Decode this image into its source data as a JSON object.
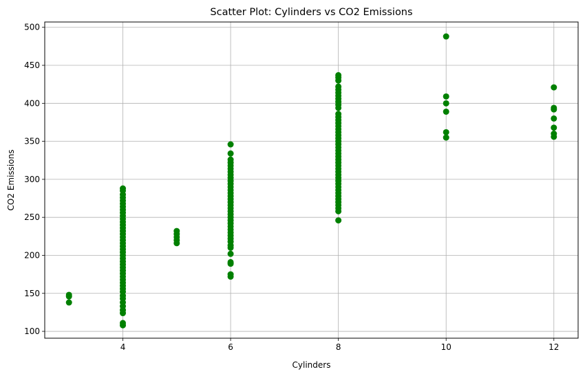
{
  "chart_data": {
    "type": "scatter",
    "title": "Scatter Plot: Cylinders vs CO2 Emissions",
    "xlabel": "Cylinders",
    "ylabel": "CO2 Emissions",
    "xlim": [
      2.55,
      12.45
    ],
    "ylim": [
      91,
      507
    ],
    "xticks": [
      4,
      6,
      8,
      10,
      12
    ],
    "yticks": [
      100,
      150,
      200,
      250,
      300,
      350,
      400,
      450,
      500
    ],
    "grid": true,
    "marker_color": "#008000",
    "series": [
      {
        "points": [
          {
            "x": 3,
            "y": 138
          },
          {
            "x": 3,
            "y": 146
          },
          {
            "x": 3,
            "y": 148
          },
          {
            "x": 4,
            "y": 108
          },
          {
            "x": 4,
            "y": 111
          },
          {
            "x": 4,
            "y": 124
          },
          {
            "x": 4,
            "y": 128
          },
          {
            "x": 4,
            "y": 133
          },
          {
            "x": 4,
            "y": 138
          },
          {
            "x": 4,
            "y": 143
          },
          {
            "x": 4,
            "y": 147
          },
          {
            "x": 4,
            "y": 152
          },
          {
            "x": 4,
            "y": 156
          },
          {
            "x": 4,
            "y": 160
          },
          {
            "x": 4,
            "y": 164
          },
          {
            "x": 4,
            "y": 168
          },
          {
            "x": 4,
            "y": 172
          },
          {
            "x": 4,
            "y": 176
          },
          {
            "x": 4,
            "y": 180
          },
          {
            "x": 4,
            "y": 184
          },
          {
            "x": 4,
            "y": 188
          },
          {
            "x": 4,
            "y": 192
          },
          {
            "x": 4,
            "y": 196
          },
          {
            "x": 4,
            "y": 200
          },
          {
            "x": 4,
            "y": 204
          },
          {
            "x": 4,
            "y": 208
          },
          {
            "x": 4,
            "y": 212
          },
          {
            "x": 4,
            "y": 216
          },
          {
            "x": 4,
            "y": 220
          },
          {
            "x": 4,
            "y": 224
          },
          {
            "x": 4,
            "y": 228
          },
          {
            "x": 4,
            "y": 232
          },
          {
            "x": 4,
            "y": 236
          },
          {
            "x": 4,
            "y": 240
          },
          {
            "x": 4,
            "y": 244
          },
          {
            "x": 4,
            "y": 248
          },
          {
            "x": 4,
            "y": 252
          },
          {
            "x": 4,
            "y": 256
          },
          {
            "x": 4,
            "y": 260
          },
          {
            "x": 4,
            "y": 264
          },
          {
            "x": 4,
            "y": 268
          },
          {
            "x": 4,
            "y": 272
          },
          {
            "x": 4,
            "y": 276
          },
          {
            "x": 4,
            "y": 280
          },
          {
            "x": 4,
            "y": 285
          },
          {
            "x": 4,
            "y": 288
          },
          {
            "x": 5,
            "y": 216
          },
          {
            "x": 5,
            "y": 220
          },
          {
            "x": 5,
            "y": 224
          },
          {
            "x": 5,
            "y": 228
          },
          {
            "x": 5,
            "y": 232
          },
          {
            "x": 6,
            "y": 172
          },
          {
            "x": 6,
            "y": 175
          },
          {
            "x": 6,
            "y": 189
          },
          {
            "x": 6,
            "y": 191
          },
          {
            "x": 6,
            "y": 202
          },
          {
            "x": 6,
            "y": 210
          },
          {
            "x": 6,
            "y": 213
          },
          {
            "x": 6,
            "y": 218
          },
          {
            "x": 6,
            "y": 222
          },
          {
            "x": 6,
            "y": 226
          },
          {
            "x": 6,
            "y": 230
          },
          {
            "x": 6,
            "y": 234
          },
          {
            "x": 6,
            "y": 238
          },
          {
            "x": 6,
            "y": 242
          },
          {
            "x": 6,
            "y": 246
          },
          {
            "x": 6,
            "y": 250
          },
          {
            "x": 6,
            "y": 254
          },
          {
            "x": 6,
            "y": 258
          },
          {
            "x": 6,
            "y": 262
          },
          {
            "x": 6,
            "y": 266
          },
          {
            "x": 6,
            "y": 270
          },
          {
            "x": 6,
            "y": 274
          },
          {
            "x": 6,
            "y": 278
          },
          {
            "x": 6,
            "y": 282
          },
          {
            "x": 6,
            "y": 286
          },
          {
            "x": 6,
            "y": 290
          },
          {
            "x": 6,
            "y": 294
          },
          {
            "x": 6,
            "y": 298
          },
          {
            "x": 6,
            "y": 302
          },
          {
            "x": 6,
            "y": 306
          },
          {
            "x": 6,
            "y": 310
          },
          {
            "x": 6,
            "y": 314
          },
          {
            "x": 6,
            "y": 318
          },
          {
            "x": 6,
            "y": 322
          },
          {
            "x": 6,
            "y": 326
          },
          {
            "x": 6,
            "y": 334
          },
          {
            "x": 6,
            "y": 346
          },
          {
            "x": 8,
            "y": 246
          },
          {
            "x": 8,
            "y": 258
          },
          {
            "x": 8,
            "y": 262
          },
          {
            "x": 8,
            "y": 266
          },
          {
            "x": 8,
            "y": 270
          },
          {
            "x": 8,
            "y": 274
          },
          {
            "x": 8,
            "y": 278
          },
          {
            "x": 8,
            "y": 282
          },
          {
            "x": 8,
            "y": 286
          },
          {
            "x": 8,
            "y": 290
          },
          {
            "x": 8,
            "y": 294
          },
          {
            "x": 8,
            "y": 298
          },
          {
            "x": 8,
            "y": 302
          },
          {
            "x": 8,
            "y": 306
          },
          {
            "x": 8,
            "y": 310
          },
          {
            "x": 8,
            "y": 314
          },
          {
            "x": 8,
            "y": 318
          },
          {
            "x": 8,
            "y": 322
          },
          {
            "x": 8,
            "y": 326
          },
          {
            "x": 8,
            "y": 330
          },
          {
            "x": 8,
            "y": 334
          },
          {
            "x": 8,
            "y": 338
          },
          {
            "x": 8,
            "y": 342
          },
          {
            "x": 8,
            "y": 346
          },
          {
            "x": 8,
            "y": 350
          },
          {
            "x": 8,
            "y": 354
          },
          {
            "x": 8,
            "y": 358
          },
          {
            "x": 8,
            "y": 362
          },
          {
            "x": 8,
            "y": 366
          },
          {
            "x": 8,
            "y": 370
          },
          {
            "x": 8,
            "y": 374
          },
          {
            "x": 8,
            "y": 378
          },
          {
            "x": 8,
            "y": 382
          },
          {
            "x": 8,
            "y": 386
          },
          {
            "x": 8,
            "y": 394
          },
          {
            "x": 8,
            "y": 398
          },
          {
            "x": 8,
            "y": 402
          },
          {
            "x": 8,
            "y": 406
          },
          {
            "x": 8,
            "y": 410
          },
          {
            "x": 8,
            "y": 414
          },
          {
            "x": 8,
            "y": 418
          },
          {
            "x": 8,
            "y": 422
          },
          {
            "x": 8,
            "y": 430
          },
          {
            "x": 8,
            "y": 434
          },
          {
            "x": 8,
            "y": 437
          },
          {
            "x": 10,
            "y": 355
          },
          {
            "x": 10,
            "y": 362
          },
          {
            "x": 10,
            "y": 389
          },
          {
            "x": 10,
            "y": 400
          },
          {
            "x": 10,
            "y": 409
          },
          {
            "x": 10,
            "y": 488
          },
          {
            "x": 12,
            "y": 356
          },
          {
            "x": 12,
            "y": 360
          },
          {
            "x": 12,
            "y": 368
          },
          {
            "x": 12,
            "y": 380
          },
          {
            "x": 12,
            "y": 392
          },
          {
            "x": 12,
            "y": 394
          },
          {
            "x": 12,
            "y": 421
          }
        ]
      }
    ]
  }
}
